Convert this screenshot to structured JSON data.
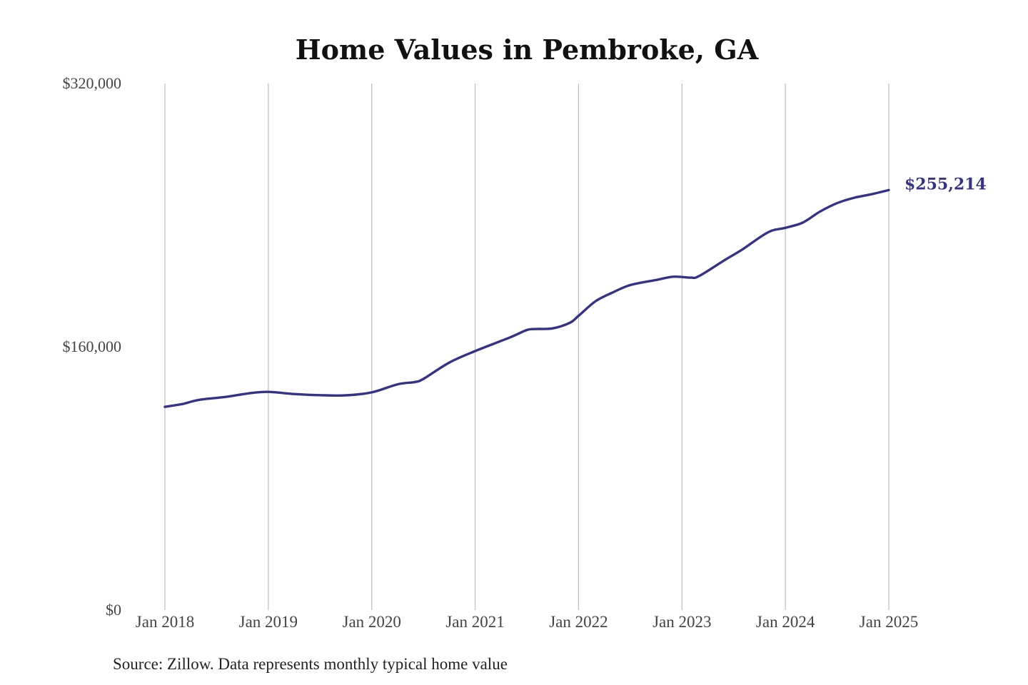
{
  "chart_data": {
    "type": "line",
    "title": "Home Values in Pembroke, GA",
    "source": "Source: Zillow. Data represents monthly typical home value",
    "ylim": [
      0,
      320000
    ],
    "xlim": [
      "2018-01",
      "2025-01"
    ],
    "y_ticks": [
      {
        "value": 0,
        "label": "$0"
      },
      {
        "value": 160000,
        "label": "$160,000"
      },
      {
        "value": 320000,
        "label": "$320,000"
      }
    ],
    "x_ticks": [
      {
        "date": "2018-01",
        "label": "Jan 2018"
      },
      {
        "date": "2019-01",
        "label": "Jan 2019"
      },
      {
        "date": "2020-01",
        "label": "Jan 2020"
      },
      {
        "date": "2021-01",
        "label": "Jan 2021"
      },
      {
        "date": "2022-01",
        "label": "Jan 2022"
      },
      {
        "date": "2023-01",
        "label": "Jan 2023"
      },
      {
        "date": "2024-01",
        "label": "Jan 2024"
      },
      {
        "date": "2025-01",
        "label": "Jan 2025"
      }
    ],
    "grid": "vertical",
    "line_color": "#363285",
    "end_label": "$255,214",
    "series": [
      {
        "points": [
          {
            "date": "2018-01",
            "y": 123500
          },
          {
            "date": "2018-03",
            "y": 125200
          },
          {
            "date": "2018-05",
            "y": 127800
          },
          {
            "date": "2018-08",
            "y": 129500
          },
          {
            "date": "2018-11",
            "y": 131900
          },
          {
            "date": "2019-01",
            "y": 132600
          },
          {
            "date": "2019-04",
            "y": 131300
          },
          {
            "date": "2019-07",
            "y": 130600
          },
          {
            "date": "2019-10",
            "y": 130500
          },
          {
            "date": "2020-01",
            "y": 132300
          },
          {
            "date": "2020-04",
            "y": 137200
          },
          {
            "date": "2020-06",
            "y": 138600
          },
          {
            "date": "2020-07",
            "y": 140500
          },
          {
            "date": "2020-10",
            "y": 150400
          },
          {
            "date": "2021-01",
            "y": 157400
          },
          {
            "date": "2021-05",
            "y": 165600
          },
          {
            "date": "2021-07",
            "y": 170200
          },
          {
            "date": "2021-08",
            "y": 170800
          },
          {
            "date": "2021-10",
            "y": 171200
          },
          {
            "date": "2021-12",
            "y": 174600
          },
          {
            "date": "2022-01",
            "y": 178800
          },
          {
            "date": "2022-03",
            "y": 187800
          },
          {
            "date": "2022-05",
            "y": 193100
          },
          {
            "date": "2022-07",
            "y": 197500
          },
          {
            "date": "2022-10",
            "y": 200600
          },
          {
            "date": "2022-12",
            "y": 202600
          },
          {
            "date": "2023-02",
            "y": 202000
          },
          {
            "date": "2023-03",
            "y": 203000
          },
          {
            "date": "2023-06",
            "y": 212800
          },
          {
            "date": "2023-08",
            "y": 219100
          },
          {
            "date": "2023-11",
            "y": 229600
          },
          {
            "date": "2024-01",
            "y": 232300
          },
          {
            "date": "2024-03",
            "y": 235400
          },
          {
            "date": "2024-05",
            "y": 242100
          },
          {
            "date": "2024-07",
            "y": 247300
          },
          {
            "date": "2024-09",
            "y": 250600
          },
          {
            "date": "2024-11",
            "y": 252700
          },
          {
            "date": "2025-01",
            "y": 255214
          }
        ]
      }
    ]
  }
}
